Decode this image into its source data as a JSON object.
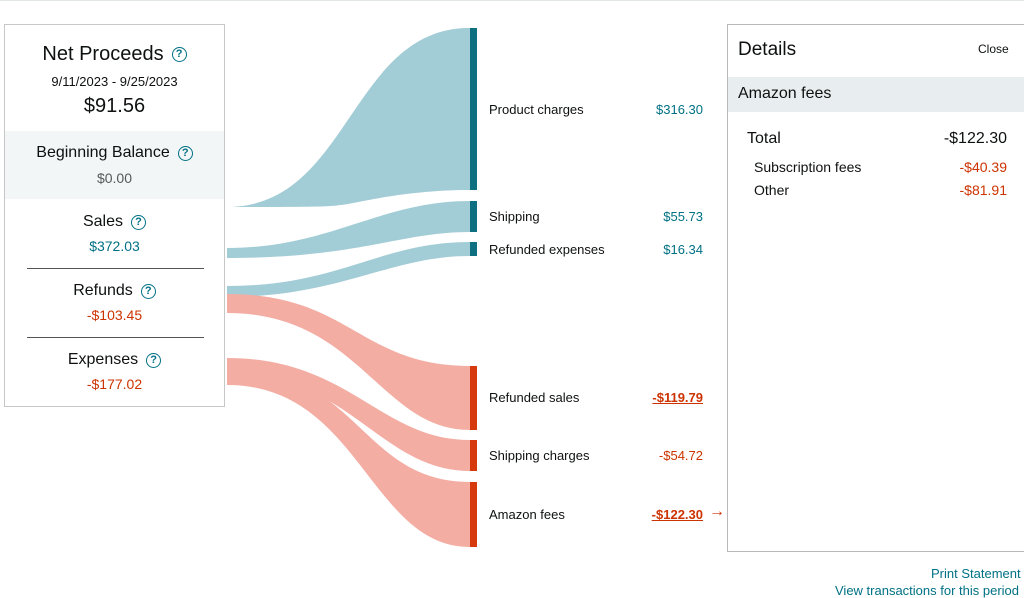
{
  "summary": {
    "net_proceeds": {
      "label": "Net Proceeds",
      "dates": "9/11/2023 - 9/25/2023",
      "value": "$91.56"
    },
    "beginning_balance": {
      "label": "Beginning Balance",
      "value": "$0.00"
    },
    "sales": {
      "label": "Sales",
      "value": "$372.03"
    },
    "refunds": {
      "label": "Refunds",
      "value": "-$103.45"
    },
    "expenses": {
      "label": "Expenses",
      "value": "-$177.02"
    },
    "help_icon": "?"
  },
  "flows": {
    "product_charges": {
      "label": "Product charges",
      "value": "$316.30"
    },
    "shipping": {
      "label": "Shipping",
      "value": "$55.73"
    },
    "refunded_expenses": {
      "label": "Refunded expenses",
      "value": "$16.34"
    },
    "refunded_sales": {
      "label": "Refunded sales",
      "value": "-$119.79"
    },
    "shipping_charges": {
      "label": "Shipping charges",
      "value": "-$54.72"
    },
    "amazon_fees": {
      "label": "Amazon fees",
      "value": "-$122.30"
    },
    "arrow": "→"
  },
  "details": {
    "title": "Details",
    "close_label": "Close",
    "section": "Amazon fees",
    "total_label": "Total",
    "total_value": "-$122.30",
    "items": [
      {
        "label": "Subscription fees",
        "value": "-$40.39"
      },
      {
        "label": "Other",
        "value": "-$81.91"
      }
    ]
  },
  "footer": {
    "print_statement": "Print Statement",
    "view_transactions": "View transactions for this period"
  },
  "colors": {
    "positive_flow": "#a3cdd6",
    "positive_bar": "#0d6f80",
    "negative_flow": "#f3ada3",
    "negative_bar": "#d63a0c",
    "teal_text": "#007185",
    "red_text": "#cc3300"
  }
}
